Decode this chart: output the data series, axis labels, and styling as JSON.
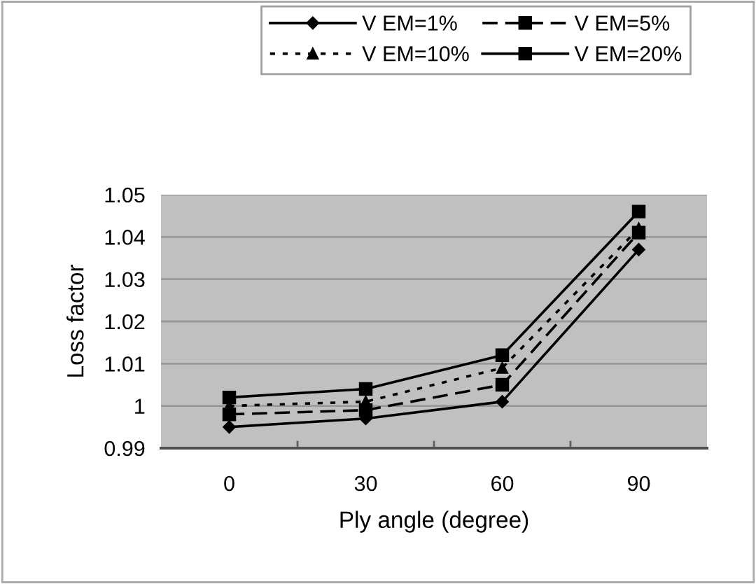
{
  "chart_data": {
    "type": "line",
    "xlabel": "Ply angle (degree)",
    "ylabel": "Loss factor",
    "categories": [
      "0",
      "30",
      "60",
      "90"
    ],
    "series": [
      {
        "name": "V EM=1%",
        "color": "#000000",
        "values": [
          0.995,
          0.997,
          1.001,
          1.037
        ],
        "marker": "diamond",
        "line_style": "solid"
      },
      {
        "name": "V EM=5%",
        "color": "#000000",
        "values": [
          0.998,
          0.999,
          1.005,
          1.041
        ],
        "marker": "square",
        "line_style": "dashed"
      },
      {
        "name": "V EM=10%",
        "color": "#000000",
        "values": [
          1.0,
          1.001,
          1.009,
          1.042
        ],
        "marker": "triangle",
        "line_style": "dotted"
      },
      {
        "name": "V EM=20%",
        "color": "#000000",
        "values": [
          1.002,
          1.004,
          1.012,
          1.046
        ],
        "marker": "square",
        "line_style": "solid"
      }
    ],
    "ylim": [
      0.99,
      1.05
    ],
    "yticks": [
      0.99,
      {
        "value": 1.0,
        "label": "1"
      },
      1.01,
      1.02,
      1.03,
      1.04,
      1.05
    ],
    "grid": "y",
    "legend": "top"
  }
}
